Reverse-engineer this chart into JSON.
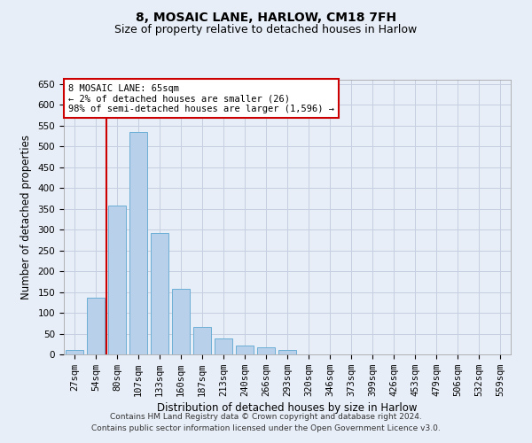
{
  "title": "8, MOSAIC LANE, HARLOW, CM18 7FH",
  "subtitle": "Size of property relative to detached houses in Harlow",
  "xlabel": "Distribution of detached houses by size in Harlow",
  "ylabel": "Number of detached properties",
  "categories": [
    "27sqm",
    "54sqm",
    "80sqm",
    "107sqm",
    "133sqm",
    "160sqm",
    "187sqm",
    "213sqm",
    "240sqm",
    "266sqm",
    "293sqm",
    "320sqm",
    "346sqm",
    "373sqm",
    "399sqm",
    "426sqm",
    "453sqm",
    "479sqm",
    "506sqm",
    "532sqm",
    "559sqm"
  ],
  "values": [
    10,
    137,
    357,
    535,
    291,
    157,
    67,
    38,
    22,
    17,
    10,
    0,
    0,
    0,
    0,
    0,
    1,
    0,
    0,
    1,
    0
  ],
  "bar_color": "#b8d0ea",
  "bar_edge_color": "#6baed6",
  "vline_color": "#cc0000",
  "annotation_text": "8 MOSAIC LANE: 65sqm\n← 2% of detached houses are smaller (26)\n98% of semi-detached houses are larger (1,596) →",
  "annotation_box_color": "#ffffff",
  "annotation_box_edge_color": "#cc0000",
  "ylim": [
    0,
    660
  ],
  "yticks": [
    0,
    50,
    100,
    150,
    200,
    250,
    300,
    350,
    400,
    450,
    500,
    550,
    600,
    650
  ],
  "footer_text": "Contains HM Land Registry data © Crown copyright and database right 2024.\nContains public sector information licensed under the Open Government Licence v3.0.",
  "background_color": "#e8eef8",
  "grid_color": "#c5cfe0",
  "title_fontsize": 10,
  "subtitle_fontsize": 9,
  "axis_label_fontsize": 8.5,
  "tick_fontsize": 7.5,
  "footer_fontsize": 6.5,
  "vline_pos": 1.5
}
